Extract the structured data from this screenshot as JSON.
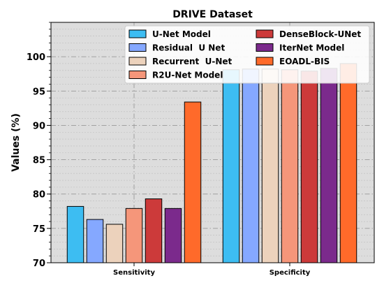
{
  "chart_data": {
    "type": "bar",
    "title": "DRIVE Dataset",
    "xlabel": "",
    "ylabel": "Values (%)",
    "ylim": [
      70,
      105
    ],
    "yticks": [
      70,
      75,
      80,
      85,
      90,
      95,
      100
    ],
    "grid": true,
    "legend_position": "top-right",
    "categories": [
      "Sensitivity",
      "Specificity"
    ],
    "series": [
      {
        "name": "U-Net Model",
        "color": "#3dbdf2",
        "values": [
          78.2,
          98.1
        ]
      },
      {
        "name": "Residual  U Net",
        "color": "#85a8ff",
        "values": [
          76.3,
          98.2
        ]
      },
      {
        "name": "Recurrent  U-Net",
        "color": "#ecd2bc",
        "values": [
          75.6,
          98.2
        ]
      },
      {
        "name": "R2U-Net Model",
        "color": "#f5967a",
        "values": [
          77.9,
          98.1
        ]
      },
      {
        "name": "DenseBlock-UNet",
        "color": "#cc3a3a",
        "values": [
          79.3,
          97.9
        ]
      },
      {
        "name": "IterNet Model",
        "color": "#7b2a8c",
        "values": [
          77.9,
          98.3
        ]
      },
      {
        "name": "EOADL-BIS",
        "color": "#ff6a2a",
        "values": [
          93.4,
          99.0
        ]
      }
    ]
  }
}
